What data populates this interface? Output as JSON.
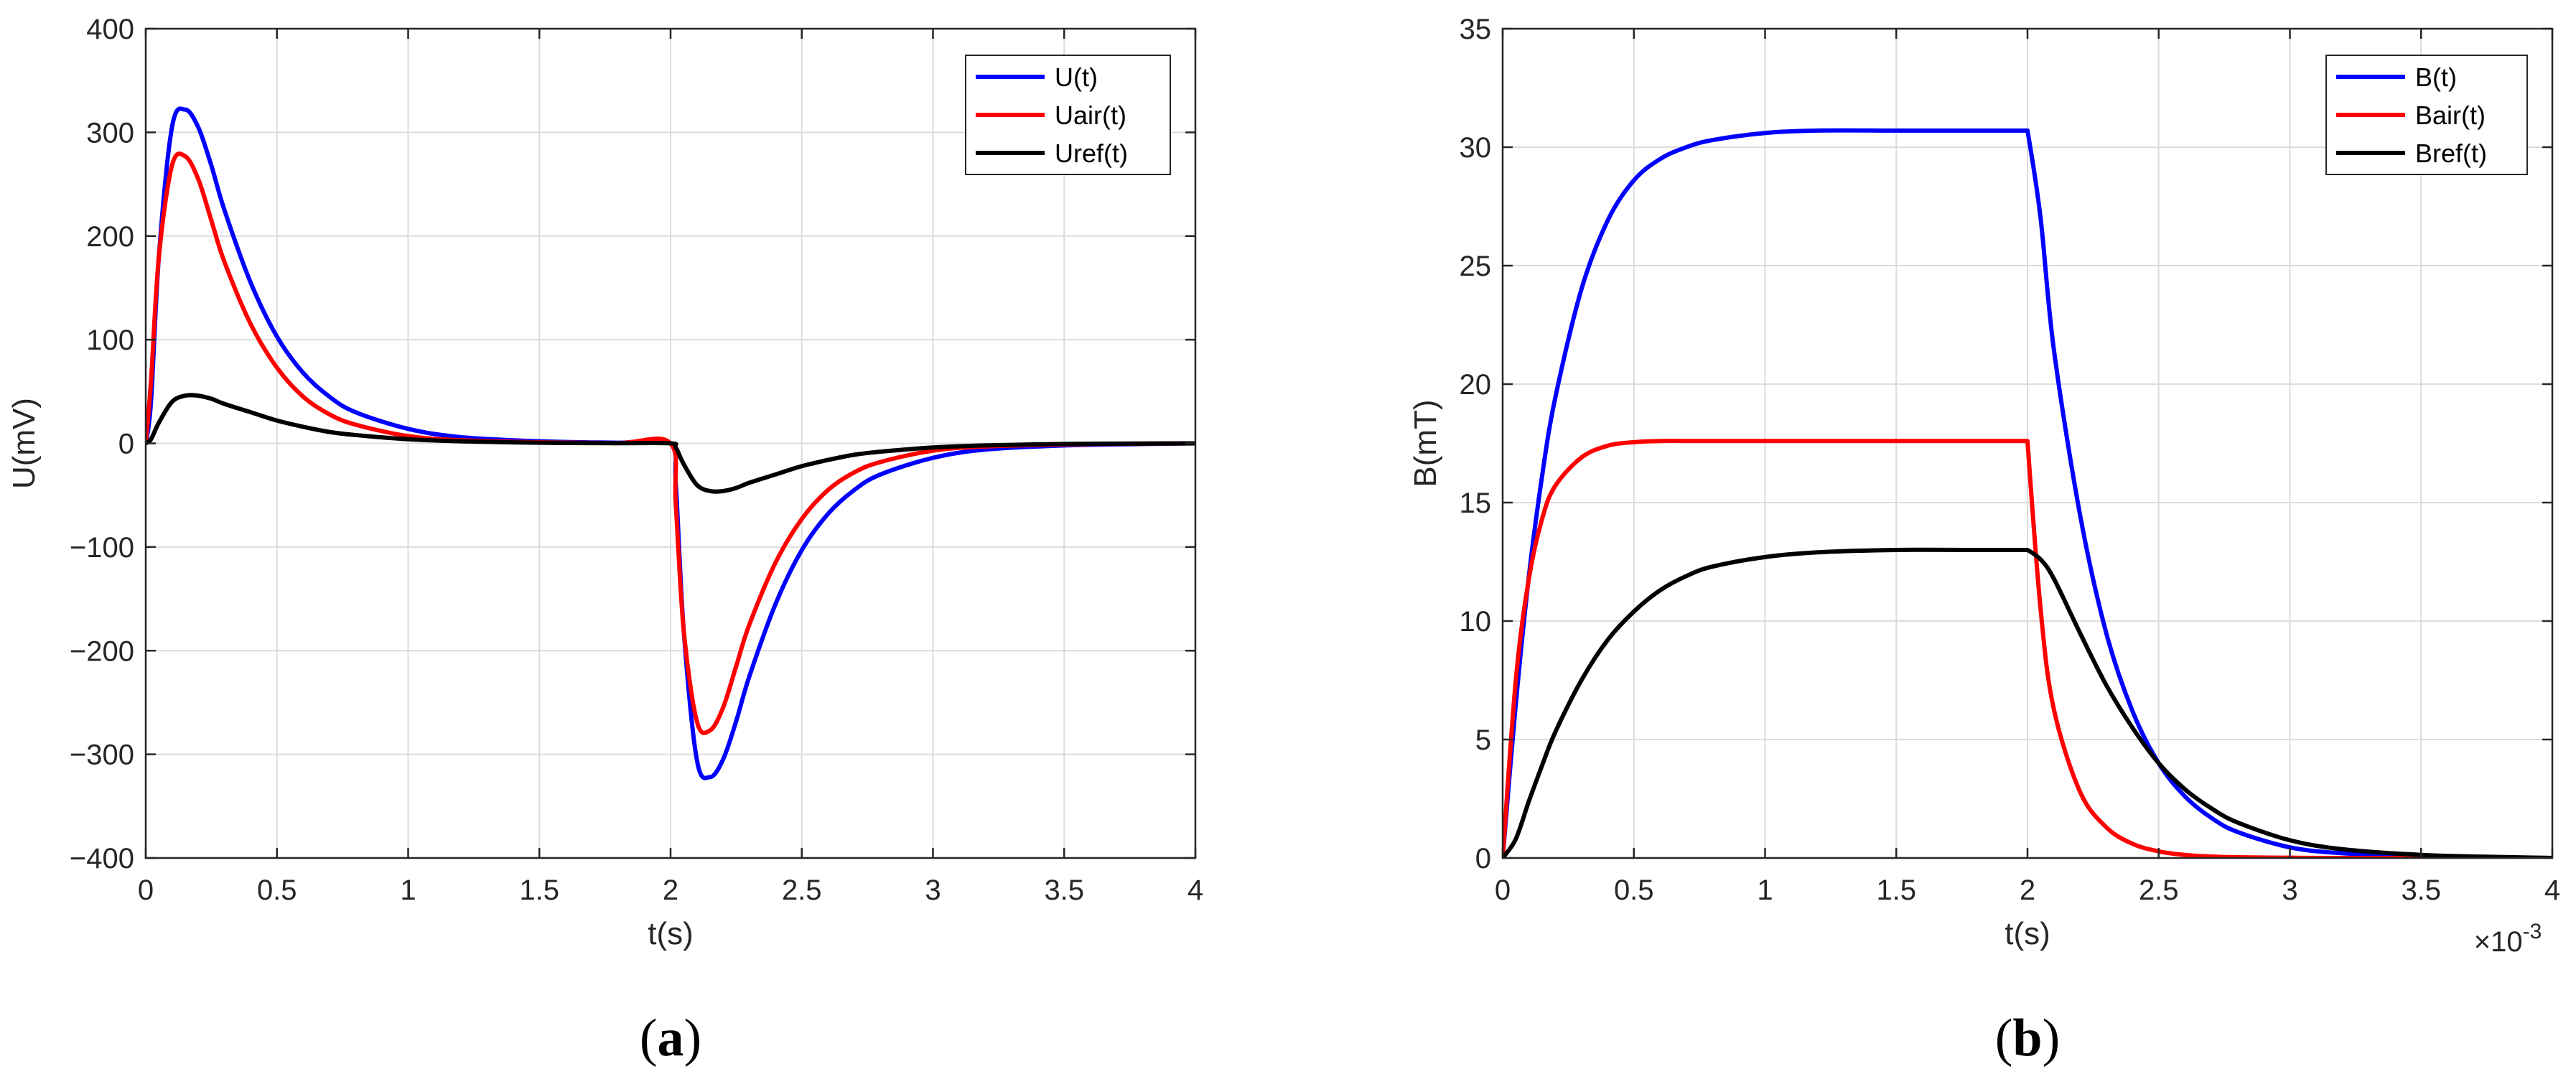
{
  "chart_data": [
    {
      "type": "line",
      "panel_label": "a",
      "xlabel": "t(s)",
      "ylabel": "U(mV)",
      "xlim": [
        0,
        4
      ],
      "ylim": [
        -400,
        400
      ],
      "xticks": [
        0,
        0.5,
        1,
        1.5,
        2,
        2.5,
        3,
        3.5,
        4
      ],
      "xtick_labels": [
        "0",
        "0.5",
        "1",
        "1.5",
        "2",
        "2.5",
        "3",
        "3.5",
        "4"
      ],
      "yticks": [
        -400,
        -300,
        -200,
        -100,
        0,
        100,
        200,
        300,
        400
      ],
      "ytick_labels": [
        "−400",
        "−300",
        "−200",
        "−100",
        "0",
        "100",
        "200",
        "300",
        "400"
      ],
      "x_multiplier": "",
      "grid": true,
      "legend_position": "top-right",
      "colors": {
        "U(t)": "#0000ff",
        "Uair(t)": "#ff0000",
        "Uref(t)": "#000000"
      },
      "series": [
        {
          "name": "U(t)",
          "x": [
            0,
            0.02,
            0.05,
            0.1,
            0.15,
            0.2,
            0.25,
            0.3,
            0.4,
            0.5,
            0.6,
            0.7,
            0.8,
            1.0,
            1.2,
            1.5,
            1.8,
            2.0,
            2.02,
            2.05,
            2.1,
            2.15,
            2.2,
            2.25,
            2.3,
            2.4,
            2.5,
            2.6,
            2.7,
            2.8,
            3.0,
            3.2,
            3.5,
            3.8,
            4.0
          ],
          "y": [
            0,
            40,
            180,
            305,
            322,
            305,
            268,
            225,
            155,
            103,
            68,
            45,
            30,
            14,
            6,
            2,
            0.6,
            0,
            -40,
            -180,
            -305,
            -322,
            -305,
            -268,
            -225,
            -155,
            -103,
            -68,
            -45,
            -30,
            -14,
            -6,
            -2,
            -0.6,
            0
          ]
        },
        {
          "name": "Uair(t)",
          "x": [
            0,
            0.02,
            0.05,
            0.1,
            0.15,
            0.2,
            0.25,
            0.3,
            0.4,
            0.5,
            0.6,
            0.7,
            0.8,
            1.0,
            1.2,
            1.5,
            1.8,
            2.0,
            2.02,
            2.05,
            2.1,
            2.15,
            2.2,
            2.25,
            2.3,
            2.4,
            2.5,
            2.6,
            2.7,
            2.8,
            3.0,
            3.2,
            3.5,
            3.8,
            4.0
          ],
          "y": [
            0,
            60,
            180,
            268,
            277,
            255,
            215,
            175,
            115,
            73,
            45,
            28,
            18,
            7,
            3,
            1,
            0.3,
            0,
            -60,
            -180,
            -268,
            -277,
            -255,
            -215,
            -175,
            -115,
            -73,
            -45,
            -28,
            -18,
            -7,
            -3,
            -1,
            -0.3,
            0
          ]
        },
        {
          "name": "Uref(t)",
          "x": [
            0,
            0.02,
            0.05,
            0.1,
            0.15,
            0.2,
            0.25,
            0.3,
            0.4,
            0.5,
            0.6,
            0.7,
            0.8,
            1.0,
            1.2,
            1.5,
            1.8,
            2.0,
            2.02,
            2.05,
            2.1,
            2.15,
            2.2,
            2.25,
            2.3,
            2.4,
            2.5,
            2.6,
            2.7,
            2.8,
            3.0,
            3.2,
            3.5,
            3.8,
            4.0
          ],
          "y": [
            0,
            4,
            20,
            40,
            46,
            46,
            43,
            38,
            30,
            22,
            16,
            11,
            8,
            4,
            2,
            0.6,
            0.2,
            0,
            -4,
            -20,
            -40,
            -46,
            -46,
            -43,
            -38,
            -30,
            -22,
            -16,
            -11,
            -8,
            -4,
            -2,
            -0.6,
            -0.2,
            0
          ]
        }
      ]
    },
    {
      "type": "line",
      "panel_label": "b",
      "xlabel": "t(s)",
      "ylabel": "B(mT)",
      "xlim": [
        0,
        4
      ],
      "ylim": [
        0,
        35
      ],
      "xticks": [
        0,
        0.5,
        1,
        1.5,
        2,
        2.5,
        3,
        3.5,
        4
      ],
      "xtick_labels": [
        "0",
        "0.5",
        "1",
        "1.5",
        "2",
        "2.5",
        "3",
        "3.5",
        "4"
      ],
      "yticks": [
        0,
        5,
        10,
        15,
        20,
        25,
        30,
        35
      ],
      "ytick_labels": [
        "0",
        "5",
        "10",
        "15",
        "20",
        "25",
        "30",
        "35"
      ],
      "x_multiplier": "×10",
      "x_multiplier_exp": "-3",
      "grid": true,
      "legend_position": "top-right",
      "colors": {
        "B(t)": "#0000ff",
        "Bair(t)": "#ff0000",
        "Bref(t)": "#000000"
      },
      "series": [
        {
          "name": "B(t)",
          "x": [
            0,
            0.05,
            0.1,
            0.15,
            0.2,
            0.3,
            0.4,
            0.5,
            0.6,
            0.7,
            0.8,
            1.0,
            1.2,
            1.5,
            1.8,
            2.0,
            2.05,
            2.1,
            2.2,
            2.3,
            2.4,
            2.5,
            2.6,
            2.7,
            2.8,
            3.0,
            3.2,
            3.5,
            3.8,
            4.0
          ],
          "y": [
            0,
            6.5,
            11.9,
            16.1,
            19.4,
            24.0,
            26.9,
            28.6,
            29.5,
            30.0,
            30.3,
            30.6,
            30.7,
            30.7,
            30.7,
            30.7,
            27.0,
            21.5,
            14.5,
            9.5,
            6.2,
            4.0,
            2.6,
            1.7,
            1.1,
            0.45,
            0.2,
            0.07,
            0.02,
            0
          ]
        },
        {
          "name": "Bair(t)",
          "x": [
            0,
            0.05,
            0.1,
            0.15,
            0.2,
            0.3,
            0.4,
            0.5,
            0.6,
            0.7,
            0.8,
            1.0,
            1.2,
            1.5,
            1.8,
            2.0,
            2.05,
            2.1,
            2.2,
            2.3,
            2.4,
            2.5,
            2.6,
            2.7,
            2.8,
            3.0,
            3.2,
            3.5,
            3.8,
            4.0
          ],
          "y": [
            0,
            7.5,
            11.8,
            14.3,
            15.7,
            16.9,
            17.4,
            17.55,
            17.6,
            17.6,
            17.6,
            17.6,
            17.6,
            17.6,
            17.6,
            17.6,
            10.5,
            6.3,
            2.8,
            1.3,
            0.6,
            0.28,
            0.13,
            0.06,
            0.03,
            0.01,
            0,
            0,
            0,
            0
          ]
        },
        {
          "name": "Bref(t)",
          "x": [
            0,
            0.05,
            0.1,
            0.15,
            0.2,
            0.3,
            0.4,
            0.5,
            0.6,
            0.7,
            0.8,
            1.0,
            1.2,
            1.5,
            1.8,
            2.0,
            2.05,
            2.1,
            2.2,
            2.3,
            2.4,
            2.5,
            2.6,
            2.7,
            2.8,
            3.0,
            3.2,
            3.5,
            3.8,
            4.0
          ],
          "y": [
            0,
            0.8,
            2.4,
            3.9,
            5.3,
            7.5,
            9.2,
            10.4,
            11.3,
            11.9,
            12.3,
            12.7,
            12.9,
            13.0,
            13.0,
            13.0,
            12.6,
            11.8,
            9.5,
            7.3,
            5.5,
            4.0,
            2.9,
            2.1,
            1.5,
            0.75,
            0.37,
            0.13,
            0.04,
            0
          ]
        }
      ]
    }
  ]
}
